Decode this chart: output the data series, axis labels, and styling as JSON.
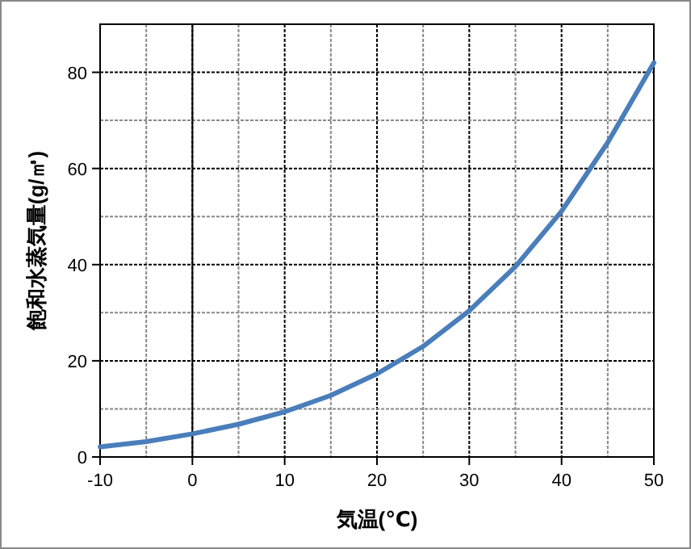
{
  "chart_data": {
    "type": "line",
    "xlabel": "気温(℃)",
    "ylabel": "飽和水蒸気量(g/㎥)",
    "x": [
      -10,
      -5,
      0,
      5,
      10,
      15,
      20,
      25,
      30,
      35,
      40,
      45,
      50
    ],
    "series": [
      {
        "color": "#4a7ebb",
        "values": [
          2.1,
          3.2,
          4.8,
          6.8,
          9.4,
          12.8,
          17.3,
          23.0,
          30.4,
          39.6,
          51.1,
          65.4,
          82.0
        ]
      }
    ],
    "xlim": [
      -10,
      50
    ],
    "xticks": [
      -10,
      0,
      10,
      20,
      30,
      40,
      50
    ],
    "ylim": [
      0,
      90
    ],
    "yticks": [
      0,
      20,
      40,
      60,
      80
    ],
    "grid": true,
    "marker": "none",
    "line_style": "solid",
    "ref_lines": [
      {
        "axis": "x",
        "value": 0,
        "color": "#000000"
      }
    ]
  }
}
